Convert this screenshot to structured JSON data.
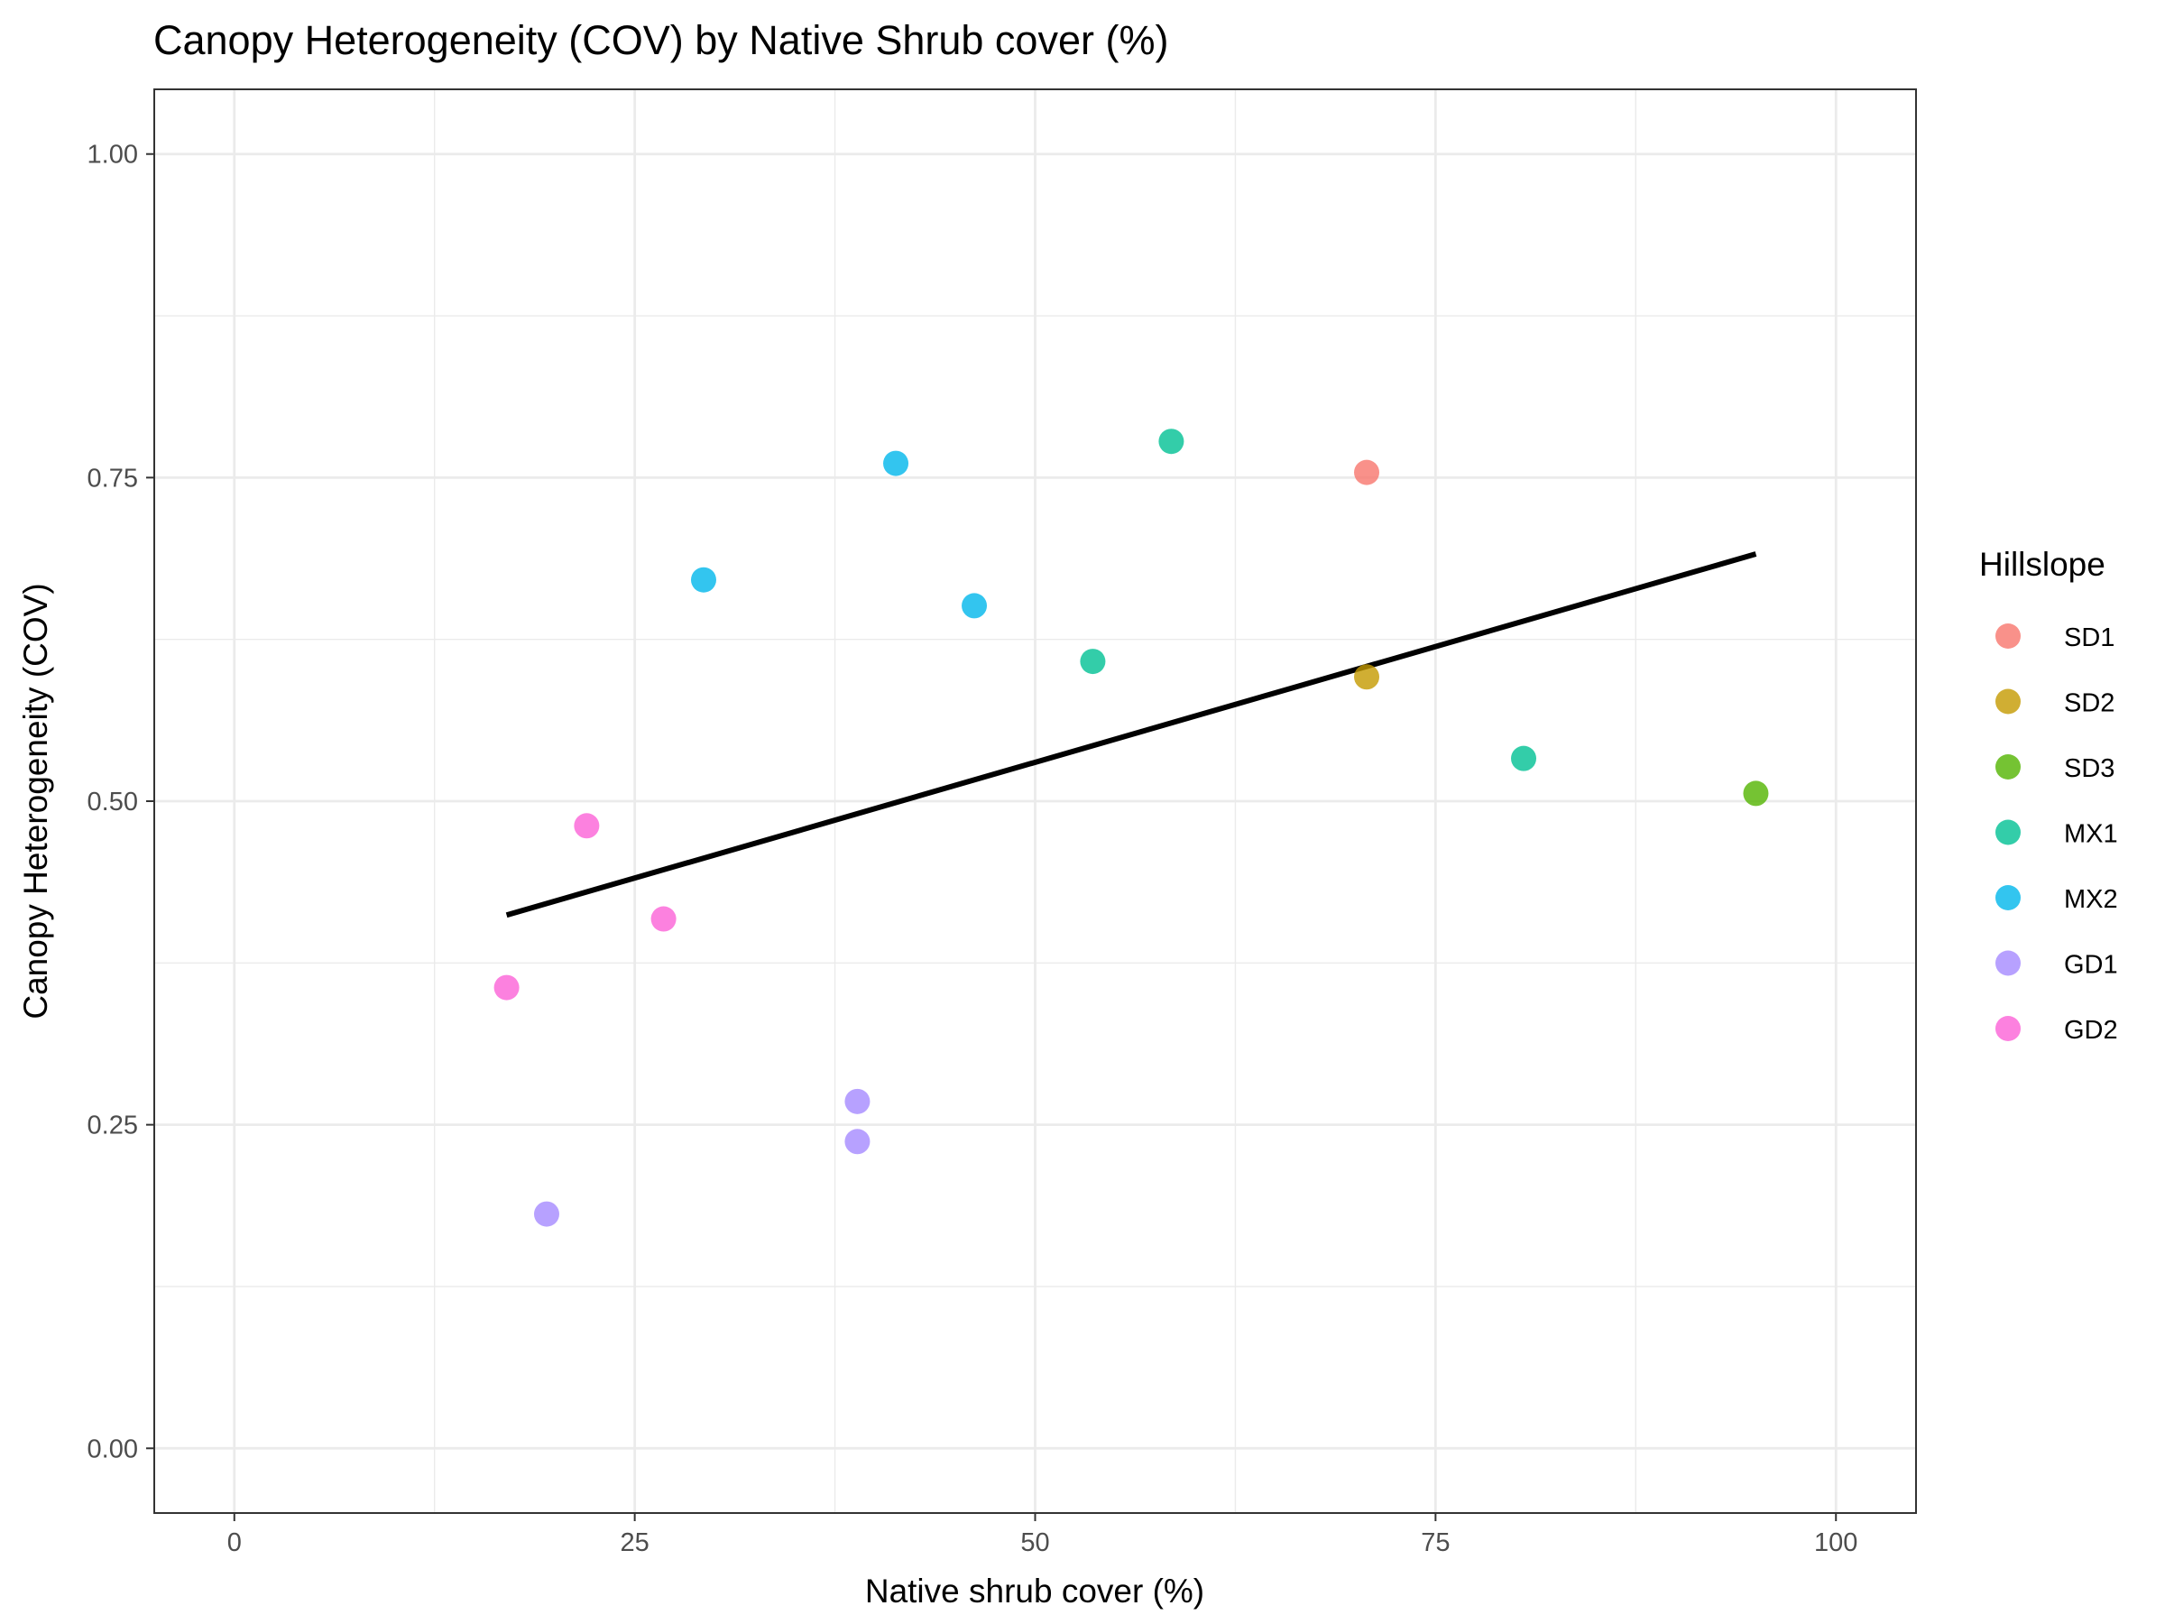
{
  "chart_data": {
    "type": "scatter",
    "title": "Canopy Heterogeneity (COV) by Native Shrub cover (%)",
    "xlabel": "Native shrub cover (%)",
    "ylabel": "Canopy Heterogeneity (COV)",
    "xlim": [
      -5,
      105
    ],
    "ylim": [
      -0.05,
      1.05
    ],
    "x_ticks": [
      0,
      25,
      50,
      75,
      100
    ],
    "y_ticks": [
      0.0,
      0.25,
      0.5,
      0.75,
      1.0
    ],
    "x_tick_labels": [
      "0",
      "25",
      "50",
      "75",
      "100"
    ],
    "y_tick_labels": [
      "0.00",
      "0.25",
      "0.50",
      "0.75",
      "1.00"
    ],
    "grid": true,
    "legend": {
      "title": "Hillslope",
      "position": "right"
    },
    "series": [
      {
        "name": "SD1",
        "color": "#F8766D",
        "points": [
          [
            70.7,
            0.754
          ]
        ]
      },
      {
        "name": "SD2",
        "color": "#C49A00",
        "points": [
          [
            70.7,
            0.596
          ]
        ]
      },
      {
        "name": "SD3",
        "color": "#53B400",
        "points": [
          [
            95.0,
            0.506
          ]
        ]
      },
      {
        "name": "MX1",
        "color": "#00C094",
        "points": [
          [
            58.5,
            0.778
          ],
          [
            53.6,
            0.608
          ],
          [
            80.5,
            0.533
          ]
        ]
      },
      {
        "name": "MX2",
        "color": "#00B6EB",
        "points": [
          [
            41.3,
            0.761
          ],
          [
            29.3,
            0.671
          ],
          [
            46.2,
            0.651
          ]
        ]
      },
      {
        "name": "GD1",
        "color": "#A58AFF",
        "points": [
          [
            38.9,
            0.268
          ],
          [
            38.9,
            0.237
          ],
          [
            19.5,
            0.181
          ]
        ]
      },
      {
        "name": "GD2",
        "color": "#FB61D7",
        "points": [
          [
            22.0,
            0.481
          ],
          [
            26.8,
            0.409
          ],
          [
            17.0,
            0.356
          ]
        ]
      }
    ],
    "trend_line": {
      "color": "#000000",
      "x": [
        17.0,
        95.0
      ],
      "y": [
        0.412,
        0.691
      ]
    }
  }
}
